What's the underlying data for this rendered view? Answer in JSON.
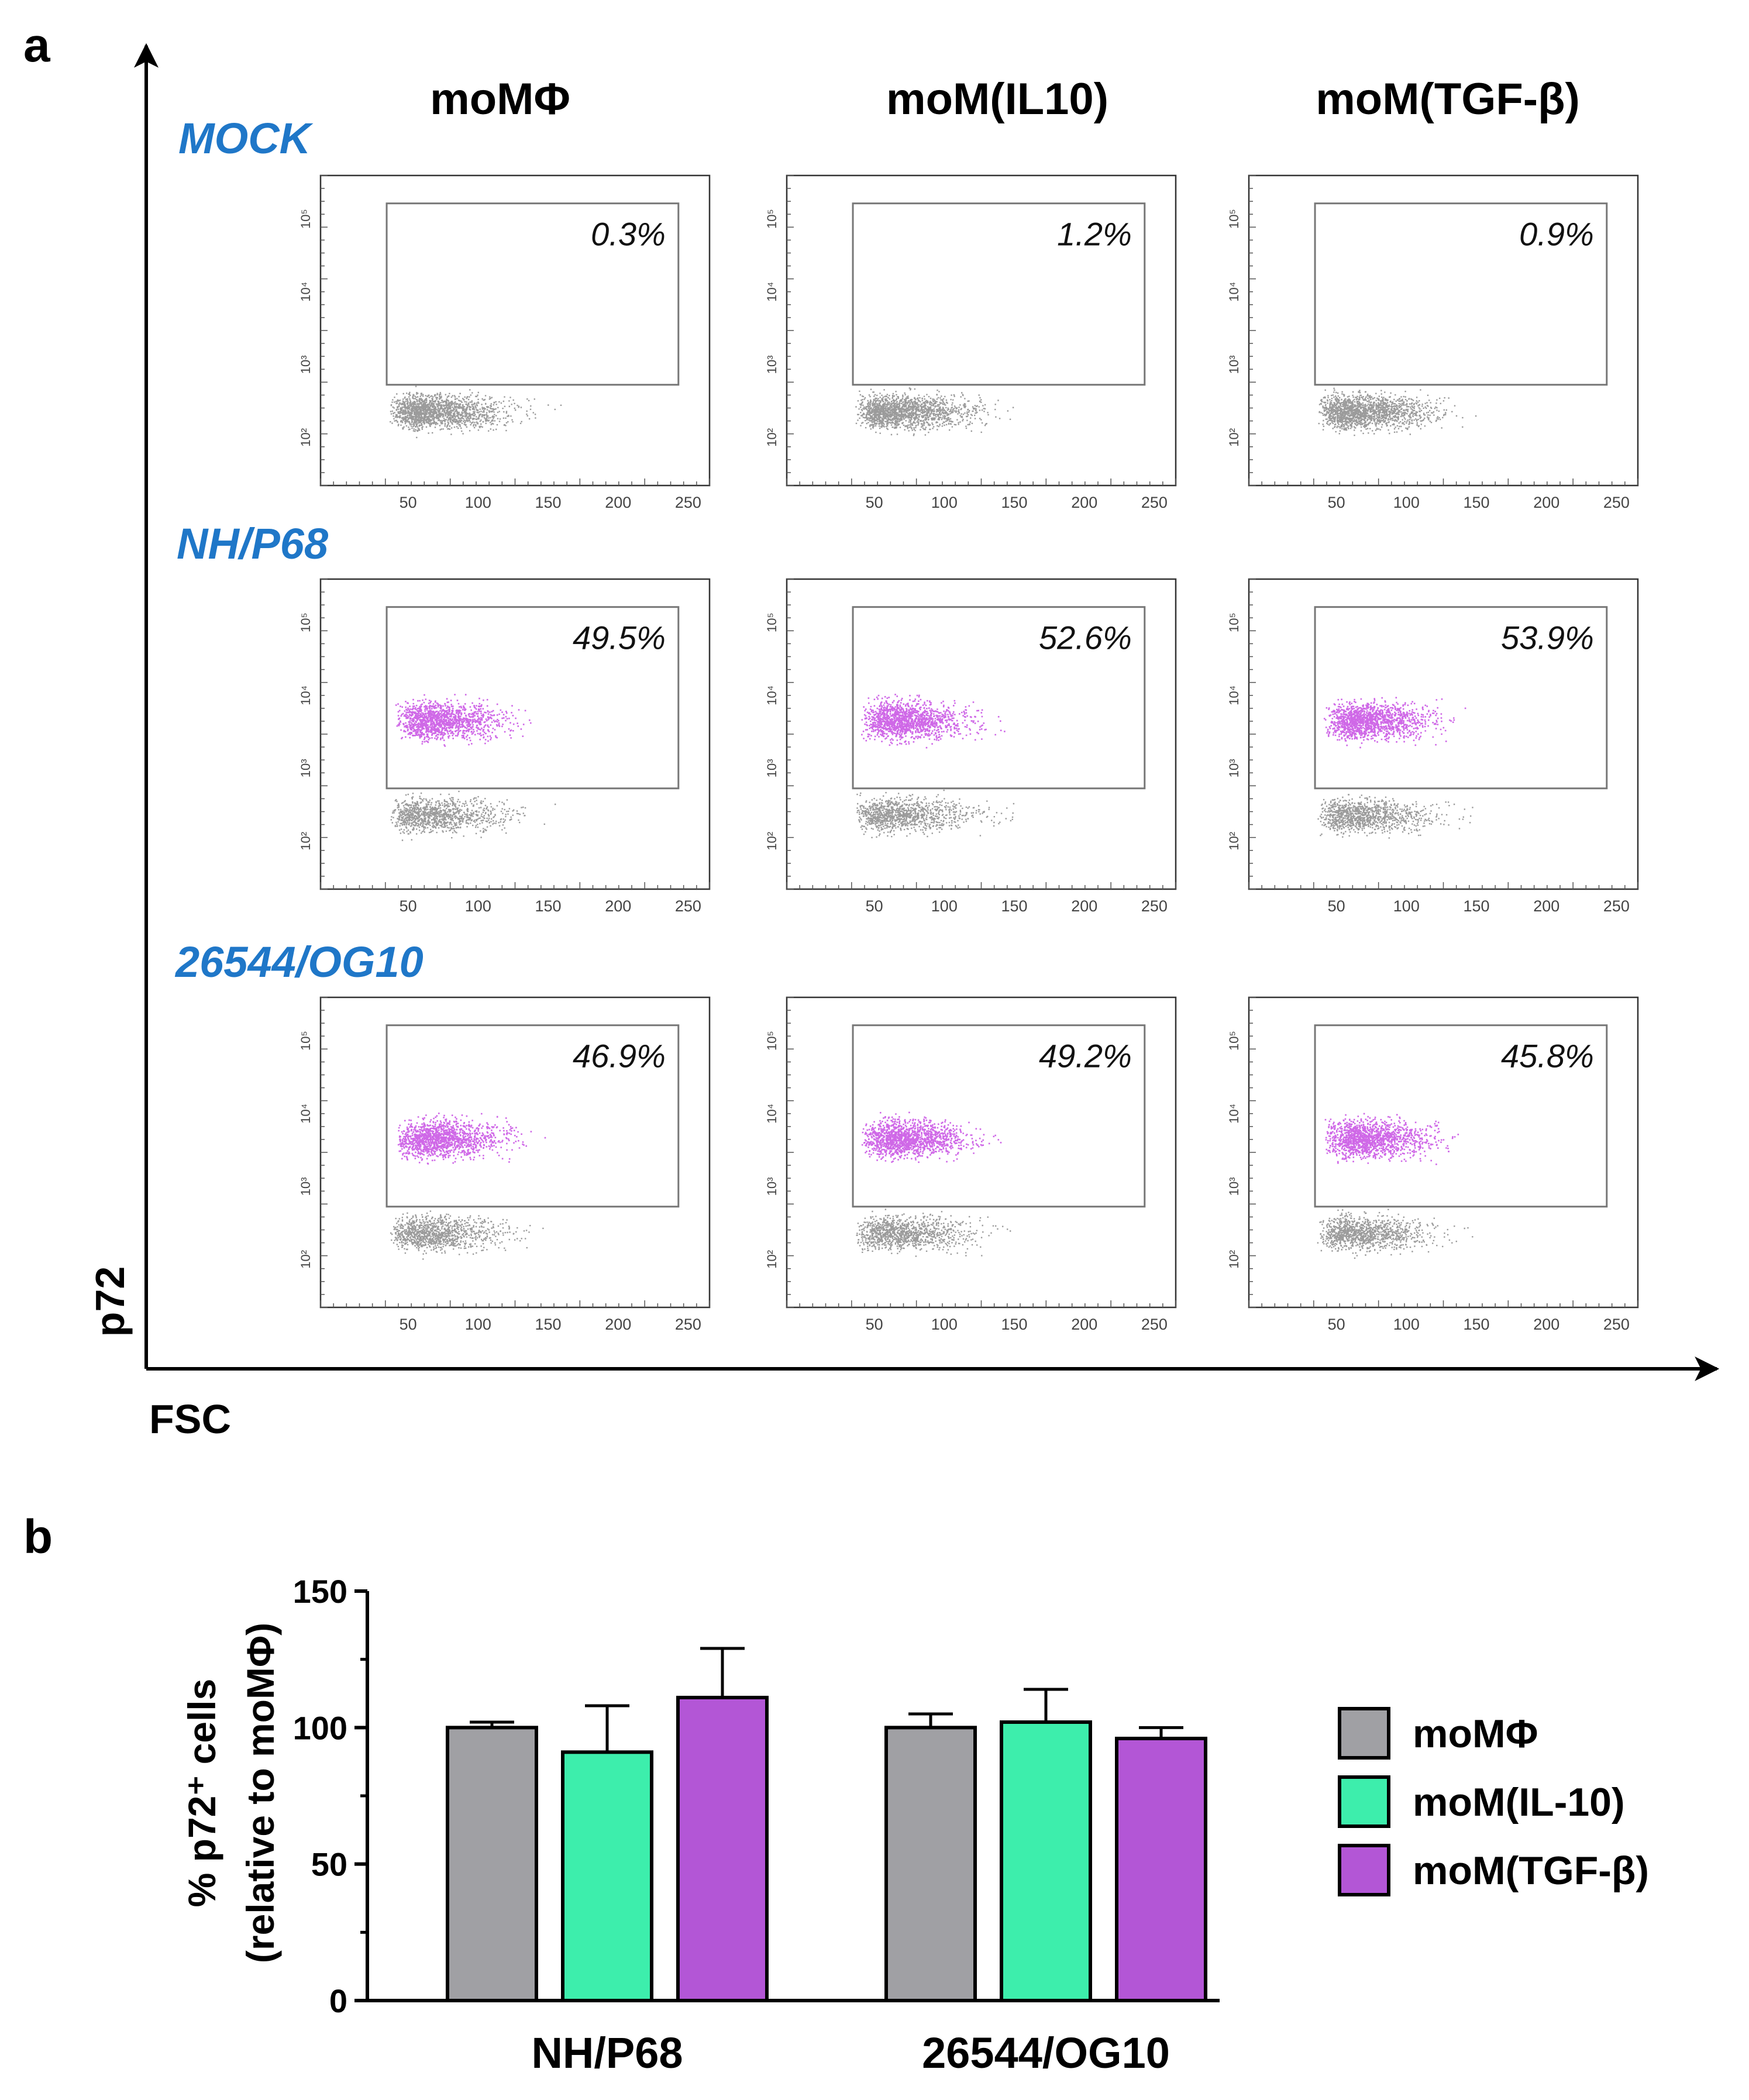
{
  "panel_a": {
    "letter": "a",
    "x_axis_label": "FSC",
    "y_axis_label": "p72",
    "columns": [
      "moMΦ",
      "moM(IL10)",
      "moM(TGF-β)"
    ],
    "rows": [
      "MOCK",
      "NH/P68",
      "26544/OG10"
    ],
    "percentages": [
      [
        "0.3%",
        "1.2%",
        "0.9%"
      ],
      [
        "49.5%",
        "52.6%",
        "53.9%"
      ],
      [
        "46.9%",
        "49.2%",
        "45.8%"
      ]
    ],
    "x_ticks": [
      "50",
      "100",
      "150",
      "200",
      "250"
    ],
    "y_ticks": [
      "10⁵",
      "10⁴",
      "10³",
      "10²"
    ],
    "colors": {
      "negative_events": "#7a7a7a",
      "positive_events": "#c23de0",
      "row_label": "#1f77c8"
    }
  },
  "chart_data": {
    "type": "bar",
    "panel": "b",
    "title": "",
    "xlabel": "",
    "ylabel_line1": "% p72⁺ cells",
    "ylabel_line2": "(relative to moMΦ)",
    "categories": [
      "NH/P68",
      "26544/OG10"
    ],
    "ylim": [
      0,
      150
    ],
    "yticks": [
      "0",
      "50",
      "100",
      "150"
    ],
    "series": [
      {
        "name": "moMΦ",
        "values": [
          100,
          100
        ],
        "errors": [
          2,
          5
        ],
        "color": "#a0a0a4"
      },
      {
        "name": "moM(IL-10)",
        "values": [
          91,
          102
        ],
        "errors": [
          17,
          12
        ],
        "color": "#3deeac"
      },
      {
        "name": "moM(TGF-β)",
        "values": [
          111,
          96
        ],
        "errors": [
          18,
          4
        ],
        "color": "#b356d6"
      }
    ]
  }
}
